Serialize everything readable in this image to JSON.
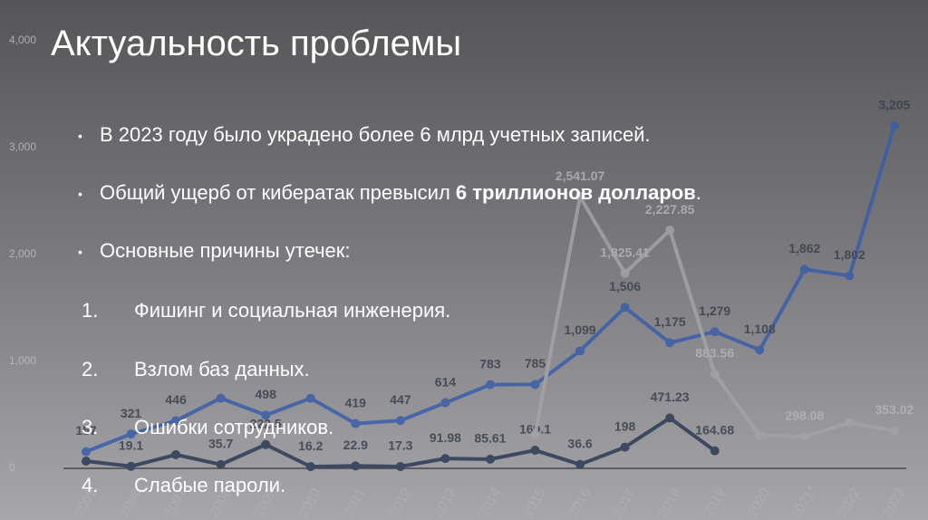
{
  "slide": {
    "title": "Актуальность проблемы",
    "bullet_1": "В 2023 году было украдено более 6 млрд учетных записей.",
    "bullet_2": {
      "text": "Общий ущерб от кибератак превысил",
      "emphasis": "6 триллионов долларов",
      "end": "."
    },
    "bullet_3": "Основные причины утечек:",
    "causes": [
      {
        "number": "1.",
        "text": "Фишинг и социальная инженерия."
      },
      {
        "number": "2.",
        "text": "Взлом баз данных."
      },
      {
        "number": "3.",
        "text": "Ошибки сотрудников."
      },
      {
        "number": "4.",
        "text": "Слабые пароли."
      }
    ]
  },
  "chart_data": {
    "type": "line",
    "categories": [
      "2005",
      "2006",
      "2007",
      "2008",
      "2009",
      "2010",
      "2011",
      "2012",
      "2013",
      "2014",
      "2015",
      "2016",
      "2017",
      "2018",
      "2019",
      "2020",
      "2021*",
      "2022",
      "2023"
    ],
    "ylim": [
      0,
      4000
    ],
    "yticks": [
      0,
      {
        "value": 1000,
        "label": "1,000"
      },
      {
        "value": 2000,
        "label": "2,000"
      },
      {
        "value": 3000,
        "label": "3,000"
      },
      {
        "value": 4000,
        "label": "4,000"
      }
    ],
    "grid": false,
    "series": [
      {
        "color": "#3a5ea8",
        "values": [
          157,
          321,
          446,
          656,
          498,
          656,
          419,
          447,
          614,
          783,
          785,
          1099,
          1506,
          1175,
          1279,
          1108,
          1862,
          1802,
          3205
        ],
        "value_labels": [
          "157",
          "321",
          "446",
          null,
          "498",
          null,
          "419",
          "447",
          "614",
          "783",
          "785",
          "1,099",
          "1,506",
          "1,175",
          "1,279",
          "1,108",
          "1,862",
          "1,802",
          "3,205"
        ]
      },
      {
        "color": "#2c3a52",
        "values": [
          68,
          19.1,
          128,
          35.7,
          222.5,
          16.2,
          22.9,
          17.3,
          91.98,
          85.61,
          169.1,
          36.6,
          198,
          471.23,
          164.68,
          null,
          null,
          null,
          null
        ],
        "value_labels": [
          null,
          "19.1",
          null,
          "35.7",
          "222.5",
          "16.2",
          "22.9",
          "17.3",
          "91.98",
          "85.61",
          "169.1",
          "36.6",
          "198",
          "471.23",
          "164.68",
          null,
          null,
          null,
          null
        ]
      },
      {
        "color": "#a3a3a6",
        "values": [
          null,
          null,
          null,
          null,
          null,
          null,
          null,
          null,
          null,
          null,
          316,
          2541.07,
          1825.41,
          2227.85,
          883.56,
          307,
          298.08,
          427,
          353.02
        ],
        "value_labels": [
          null,
          null,
          null,
          null,
          null,
          null,
          null,
          null,
          null,
          null,
          null,
          "2,541.07",
          "1,825.41",
          "2,227.85",
          "883.56",
          null,
          "298.08",
          null,
          "353.02"
        ]
      }
    ]
  }
}
